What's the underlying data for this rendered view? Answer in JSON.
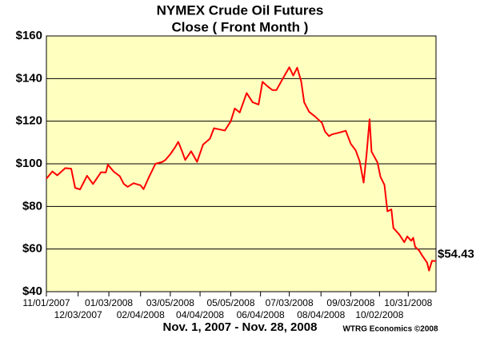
{
  "chart_data": {
    "type": "line",
    "title": "NYMEX Crude Oil Futures",
    "subtitle": "Close ( Front Month )",
    "x_label": "Nov. 1, 2007 - Nov. 28, 2008",
    "credit": "WTRG Economics  ©2008",
    "end_label": "$54.43",
    "xlim": [
      "11/01/2007",
      "11/28/2008"
    ],
    "xticks": [
      "11/01/2007",
      "12/03/2007",
      "01/03/2008",
      "02/04/2008",
      "03/05/2008",
      "04/04/2008",
      "05/05/2008",
      "06/04/2008",
      "07/03/2008",
      "08/04/2008",
      "09/03/2008",
      "10/02/2008",
      "10/31/2008"
    ],
    "ylim": [
      40,
      160
    ],
    "yticks": [
      {
        "value": 40,
        "label": "$40"
      },
      {
        "value": 60,
        "label": "$60"
      },
      {
        "value": 80,
        "label": "$80"
      },
      {
        "value": 100,
        "label": "$100"
      },
      {
        "value": 120,
        "label": "$120"
      },
      {
        "value": 140,
        "label": "$140"
      },
      {
        "value": 160,
        "label": "$160"
      }
    ],
    "grid": true,
    "background": "#ffffc0",
    "series": [
      {
        "color": "#ff0000",
        "x": [
          "11/01/2007",
          "11/07/2007",
          "11/12/2007",
          "11/20/2007",
          "11/26/2007",
          "11/30/2007",
          "12/05/2007",
          "12/12/2007",
          "12/18/2007",
          "12/26/2007",
          "12/31/2007",
          "01/02/2008",
          "01/08/2008",
          "01/14/2008",
          "01/18/2008",
          "01/22/2008",
          "01/28/2008",
          "02/04/2008",
          "02/07/2008",
          "02/12/2008",
          "02/19/2008",
          "02/26/2008",
          "02/29/2008",
          "03/05/2008",
          "03/10/2008",
          "03/13/2008",
          "03/17/2008",
          "03/20/2008",
          "03/26/2008",
          "04/01/2008",
          "04/07/2008",
          "04/14/2008",
          "04/18/2008",
          "04/24/2008",
          "04/29/2008",
          "05/05/2008",
          "05/09/2008",
          "05/14/2008",
          "05/21/2008",
          "05/27/2008",
          "06/02/2008",
          "06/06/2008",
          "06/11/2008",
          "06/16/2008",
          "06/20/2008",
          "06/26/2008",
          "07/03/2008",
          "07/07/2008",
          "07/11/2008",
          "07/15/2008",
          "07/18/2008",
          "07/23/2008",
          "07/29/2008",
          "08/05/2008",
          "08/08/2008",
          "08/12/2008",
          "08/15/2008",
          "08/22/2008",
          "08/29/2008",
          "09/03/2008",
          "09/08/2008",
          "09/12/2008",
          "09/16/2008",
          "09/19/2008",
          "09/22/2008",
          "09/24/2008",
          "09/30/2008",
          "10/03/2008",
          "10/07/2008",
          "10/10/2008",
          "10/14/2008",
          "10/16/2008",
          "10/22/2008",
          "10/27/2008",
          "10/30/2008",
          "11/03/2008",
          "11/05/2008",
          "11/07/2008",
          "11/11/2008",
          "11/14/2008",
          "11/19/2008",
          "11/21/2008",
          "11/24/2008",
          "11/26/2008",
          "11/28/2008"
        ],
        "values": [
          93,
          96.4,
          94.6,
          98,
          97.7,
          88.7,
          88,
          94.4,
          90.5,
          96,
          95.98,
          99.6,
          96.3,
          94.2,
          90.6,
          89.2,
          90.9,
          89.9,
          88.1,
          93.3,
          100,
          100.9,
          101.8,
          104.5,
          107.9,
          110.3,
          105.7,
          101.8,
          105.9,
          100.9,
          109,
          111.8,
          116.7,
          116.1,
          115.6,
          120,
          125.96,
          124.1,
          133.2,
          128.9,
          127.8,
          138.5,
          136.4,
          134.6,
          134.6,
          139.6,
          145.3,
          141.4,
          145.1,
          138.7,
          128.9,
          124.4,
          122.2,
          119.2,
          115.2,
          113,
          113.8,
          114.6,
          115.5,
          109.4,
          106.3,
          101.2,
          91.2,
          104.6,
          120.9,
          105.7,
          100.6,
          93.9,
          90.1,
          77.7,
          78.6,
          69.9,
          66.8,
          63.2,
          65.9,
          63.9,
          65.3,
          61,
          59.3,
          57,
          53.6,
          49.9,
          54.5,
          54.4,
          54.43
        ]
      }
    ]
  }
}
